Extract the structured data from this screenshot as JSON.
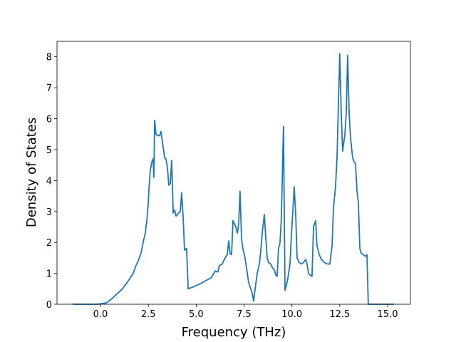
{
  "chart_data": {
    "type": "line",
    "xlabel": "Frequency (THz)",
    "ylabel": "Density of States",
    "xlim": [
      -2.27,
      16.19
    ],
    "ylim": [
      0,
      8.5
    ],
    "xticks": [
      {
        "value": 0,
        "label": "0.0"
      },
      {
        "value": 2.5,
        "label": "2.5"
      },
      {
        "value": 5,
        "label": "5.0"
      },
      {
        "value": 7.5,
        "label": "7.5"
      },
      {
        "value": 10,
        "label": "10.0"
      },
      {
        "value": 12.5,
        "label": "12.5"
      },
      {
        "value": 15,
        "label": "15.0"
      }
    ],
    "yticks": [
      0,
      1,
      2,
      3,
      4,
      5,
      6,
      7,
      8
    ],
    "grid": false,
    "series": [
      {
        "color": "#1f77b4",
        "x": [
          -1.45,
          -0.22,
          0,
          0.33,
          0.63,
          0.89,
          1.15,
          1.45,
          1.71,
          1.82,
          1.97,
          2.12,
          2.23,
          2.34,
          2.42,
          2.49,
          2.53,
          2.6,
          2.68,
          2.75,
          2.79,
          2.83,
          2.9,
          2.98,
          3.09,
          3.16,
          3.27,
          3.35,
          3.42,
          3.5,
          3.57,
          3.65,
          3.72,
          3.8,
          3.87,
          3.95,
          4.09,
          4.17,
          4.24,
          4.32,
          4.39,
          4.47,
          4.5,
          4.58,
          4.8,
          5.17,
          5.55,
          5.77,
          5.92,
          6.0,
          6.07,
          6.14,
          6.21,
          6.36,
          6.51,
          6.62,
          6.7,
          6.77,
          6.85,
          6.92,
          7.0,
          7.07,
          7.15,
          7.22,
          7.29,
          7.37,
          7.44,
          7.55,
          7.67,
          7.74,
          7.85,
          7.93,
          8.0,
          8.08,
          8.19,
          8.3,
          8.37,
          8.45,
          8.56,
          8.63,
          8.71,
          8.78,
          8.89,
          8.97,
          9.08,
          9.16,
          9.23,
          9.3,
          9.38,
          9.45,
          9.56,
          9.64,
          9.71,
          9.79,
          9.9,
          9.97,
          10.05,
          10.12,
          10.2,
          10.27,
          10.38,
          10.5,
          10.61,
          10.72,
          10.79,
          10.87,
          10.94,
          11.05,
          11.13,
          11.24,
          11.31,
          11.43,
          11.54,
          11.69,
          11.87,
          11.98,
          12.1,
          12.17,
          12.28,
          12.36,
          12.43,
          12.5,
          12.58,
          12.65,
          12.77,
          12.84,
          12.91,
          12.99,
          13.06,
          13.17,
          13.25,
          13.32,
          13.4,
          13.47,
          13.55,
          13.62,
          13.73,
          13.84,
          13.92,
          13.99,
          15.33
        ],
        "values": [
          0,
          0,
          0.01,
          0.05,
          0.2,
          0.35,
          0.5,
          0.75,
          1.0,
          1.2,
          1.4,
          1.65,
          2.0,
          2.3,
          2.7,
          3.2,
          3.7,
          4.3,
          4.6,
          4.7,
          4.1,
          5.95,
          5.5,
          5.45,
          5.45,
          5.58,
          5.1,
          4.75,
          4.7,
          4.4,
          3.85,
          3.9,
          4.65,
          2.95,
          3.05,
          2.85,
          2.95,
          3.0,
          3.6,
          2.8,
          1.75,
          1.8,
          1.8,
          0.5,
          0.55,
          0.65,
          0.78,
          0.85,
          1.0,
          1.08,
          1.05,
          1.05,
          1.25,
          1.3,
          1.5,
          1.6,
          2.05,
          1.65,
          1.6,
          2.7,
          2.6,
          2.5,
          2.3,
          2.6,
          3.65,
          2.1,
          1.8,
          1.5,
          1.0,
          0.7,
          0.5,
          0.35,
          0.1,
          0.5,
          1.0,
          1.3,
          1.7,
          2.3,
          2.9,
          2.2,
          1.5,
          1.35,
          1.3,
          1.2,
          1.1,
          0.95,
          0.9,
          1.8,
          2.0,
          2.8,
          5.75,
          0.45,
          0.6,
          0.85,
          1.3,
          2.2,
          3.0,
          3.8,
          2.9,
          1.5,
          1.35,
          1.3,
          1.35,
          1.45,
          1.3,
          1.0,
          0.95,
          0.9,
          2.5,
          2.7,
          1.9,
          1.6,
          1.45,
          1.35,
          1.3,
          1.3,
          1.9,
          3.1,
          3.8,
          4.8,
          6.5,
          8.1,
          6.1,
          4.95,
          5.5,
          6.2,
          8.05,
          6.2,
          5.4,
          4.75,
          4.6,
          4.55,
          3.65,
          3.3,
          1.8,
          1.65,
          1.6,
          1.55,
          1.6,
          0,
          0
        ]
      }
    ]
  }
}
